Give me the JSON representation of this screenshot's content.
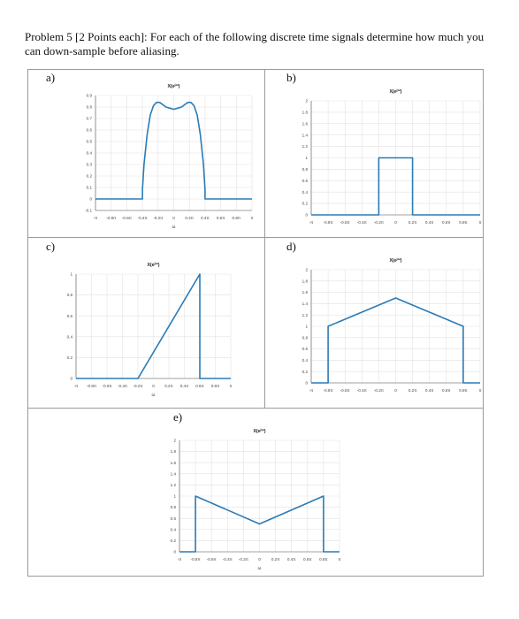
{
  "problem_text": "Problem 5 [2 Points each]: For each of the following discrete time signals determine how much you can down-sample before aliasing.",
  "chart_data": [
    {
      "id": "a",
      "panel_label": "a)",
      "type": "line",
      "title": "X(e^{jω})",
      "xlabel": "ω",
      "ylabel": "",
      "xlim": [
        -1,
        1
      ],
      "ylim": [
        -0.1,
        0.9
      ],
      "xtick_values": [
        -1,
        -0.8,
        -0.6,
        -0.4,
        -0.2,
        0,
        0.2,
        0.4,
        0.6,
        0.8,
        1
      ],
      "xtick_labels": [
        "-π",
        "-0.8π",
        "-0.6π",
        "-0.4π",
        "-0.2π",
        "0",
        "0.2π",
        "0.4π",
        "0.6π",
        "0.8π",
        "π"
      ],
      "ytick_values": [
        -0.1,
        0,
        0.1,
        0.2,
        0.3,
        0.4,
        0.5,
        0.6,
        0.7,
        0.8,
        0.9
      ],
      "ytick_labels": [
        "-0.1",
        "0",
        "0.1",
        "0.2",
        "0.3",
        "0.4",
        "0.5",
        "0.6",
        "0.7",
        "0.8",
        "0.9"
      ],
      "grid": true,
      "series": [
        {
          "x": [
            -1,
            -0.4,
            -0.4,
            -0.38,
            -0.34,
            -0.3,
            -0.26,
            -0.22,
            -0.18,
            -0.14,
            -0.1,
            -0.05,
            0,
            0.05,
            0.1,
            0.14,
            0.18,
            0.22,
            0.26,
            0.3,
            0.34,
            0.38,
            0.4,
            0.4,
            1
          ],
          "y": [
            0,
            0,
            0.08,
            0.3,
            0.56,
            0.73,
            0.81,
            0.84,
            0.84,
            0.82,
            0.8,
            0.79,
            0.78,
            0.79,
            0.8,
            0.82,
            0.84,
            0.84,
            0.81,
            0.73,
            0.56,
            0.3,
            0.08,
            0,
            0
          ]
        }
      ]
    },
    {
      "id": "b",
      "panel_label": "b)",
      "type": "line",
      "title": "X(e^{jω})",
      "xlabel": "",
      "ylabel": "",
      "xlim": [
        -1,
        1
      ],
      "ylim": [
        0,
        2
      ],
      "xtick_values": [
        -1,
        -0.8,
        -0.6,
        -0.4,
        -0.2,
        0,
        0.2,
        0.4,
        0.6,
        0.8,
        1
      ],
      "xtick_labels": [
        "-π",
        "-0.8π",
        "-0.6π",
        "-0.4π",
        "-0.2π",
        "0",
        "0.2π",
        "0.4π",
        "0.6π",
        "0.8π",
        "π"
      ],
      "ytick_values": [
        0,
        0.2,
        0.4,
        0.6,
        0.8,
        1,
        1.2,
        1.4,
        1.6,
        1.8,
        2
      ],
      "ytick_labels": [
        "0",
        "0.2",
        "0.4",
        "0.6",
        "0.8",
        "1",
        "1.2",
        "1.4",
        "1.6",
        "1.8",
        "2"
      ],
      "grid": true,
      "series": [
        {
          "x": [
            -1,
            -0.2,
            -0.2,
            0.2,
            0.2,
            1
          ],
          "y": [
            0,
            0,
            1,
            1,
            0,
            0
          ]
        }
      ]
    },
    {
      "id": "c",
      "panel_label": "c)",
      "type": "line",
      "title": "X(e^{jω})",
      "xlabel": "ω",
      "ylabel": "",
      "xlim": [
        -1,
        1
      ],
      "ylim": [
        0,
        1
      ],
      "xtick_values": [
        -1,
        -0.8,
        -0.6,
        -0.4,
        -0.2,
        0,
        0.2,
        0.4,
        0.6,
        0.8,
        1
      ],
      "xtick_labels": [
        "-π",
        "-0.8π",
        "-0.6π",
        "-0.4π",
        "-0.2π",
        "0",
        "0.2π",
        "0.4π",
        "0.6π",
        "0.8π",
        "π"
      ],
      "ytick_values": [
        0,
        0.2,
        0.4,
        0.6,
        0.8,
        1
      ],
      "ytick_labels": [
        "0",
        "0.2",
        "0.4",
        "0.6",
        "0.8",
        "1"
      ],
      "grid": true,
      "series": [
        {
          "x": [
            -1,
            -0.2,
            0.6,
            0.6,
            1
          ],
          "y": [
            0,
            0,
            1,
            0,
            0
          ]
        }
      ]
    },
    {
      "id": "d",
      "panel_label": "d)",
      "type": "line",
      "title": "X(e^{jω})",
      "xlabel": "",
      "ylabel": "",
      "xlim": [
        -1,
        1
      ],
      "ylim": [
        0,
        2
      ],
      "xtick_values": [
        -1,
        -0.8,
        -0.6,
        -0.4,
        -0.2,
        0,
        0.2,
        0.4,
        0.6,
        0.8,
        1
      ],
      "xtick_labels": [
        "-π",
        "-0.8π",
        "-0.6π",
        "-0.4π",
        "-0.2π",
        "0",
        "0.2π",
        "0.4π",
        "0.6π",
        "0.8π",
        "π"
      ],
      "ytick_values": [
        0,
        0.2,
        0.4,
        0.6,
        0.8,
        1,
        1.2,
        1.4,
        1.6,
        1.8,
        2
      ],
      "ytick_labels": [
        "0",
        "0.2",
        "0.4",
        "0.6",
        "0.8",
        "1",
        "1.2",
        "1.4",
        "1.6",
        "1.8",
        "2"
      ],
      "grid": true,
      "series": [
        {
          "x": [
            -1,
            -0.8,
            -0.8,
            0,
            0.8,
            0.8,
            1
          ],
          "y": [
            0,
            0,
            1,
            1.5,
            1,
            0,
            0
          ]
        }
      ]
    },
    {
      "id": "e",
      "panel_label": "e)",
      "type": "line",
      "title": "X(e^{jω})",
      "xlabel": "ω",
      "ylabel": "",
      "xlim": [
        -1,
        1
      ],
      "ylim": [
        0,
        2
      ],
      "xtick_values": [
        -1,
        -0.8,
        -0.6,
        -0.4,
        -0.2,
        0,
        0.2,
        0.4,
        0.6,
        0.8,
        1
      ],
      "xtick_labels": [
        "-π",
        "-0.8π",
        "-0.6π",
        "-0.4π",
        "-0.2π",
        "0",
        "0.2π",
        "0.4π",
        "0.6π",
        "0.8π",
        "π"
      ],
      "ytick_values": [
        0,
        0.2,
        0.4,
        0.6,
        0.8,
        1,
        1.2,
        1.4,
        1.6,
        1.8,
        2
      ],
      "ytick_labels": [
        "0",
        "0.2",
        "0.4",
        "0.6",
        "0.8",
        "1",
        "1.2",
        "1.4",
        "1.6",
        "1.8",
        "2"
      ],
      "grid": true,
      "series": [
        {
          "x": [
            -1,
            -0.8,
            -0.8,
            0,
            0.8,
            0.8,
            1
          ],
          "y": [
            0,
            0,
            1,
            0.5,
            1,
            0,
            0
          ]
        }
      ]
    }
  ],
  "colors": {
    "line": "#2a7bb6",
    "grid": "#e2e2e2",
    "axis": "#555555",
    "tick_text": "#444444"
  }
}
